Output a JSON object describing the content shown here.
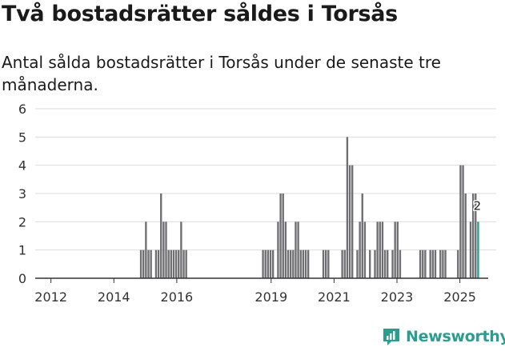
{
  "title": "Två bostadsrätter såldes i Torsås",
  "subtitle": "Antal sålda bostadsrätter i Torsås under de senaste tre månaderna.",
  "logo_text": "Newsworthy",
  "colors": {
    "bar": "#6f6f73",
    "highlight": "#2a9d8f",
    "grid": "#dddddd",
    "axis": "#333333"
  },
  "chart_data": {
    "type": "bar",
    "title": "Två bostadsrätter såldes i Torsås",
    "xlabel": "",
    "ylabel": "",
    "ylim": [
      0,
      6
    ],
    "yticks": [
      0,
      1,
      2,
      3,
      4,
      5,
      6
    ],
    "xticks": [
      2012,
      2014,
      2016,
      2019,
      2021,
      2023,
      2025
    ],
    "x_range": [
      2011.5,
      2025.9
    ],
    "bar_width_years": 0.06,
    "series": [
      {
        "name": "Sålda bostadsrätter",
        "points": [
          {
            "x": 2014.86,
            "y": 1
          },
          {
            "x": 2014.94,
            "y": 1
          },
          {
            "x": 2015.02,
            "y": 2
          },
          {
            "x": 2015.1,
            "y": 1
          },
          {
            "x": 2015.18,
            "y": 1
          },
          {
            "x": 2015.34,
            "y": 1
          },
          {
            "x": 2015.42,
            "y": 1
          },
          {
            "x": 2015.5,
            "y": 3
          },
          {
            "x": 2015.58,
            "y": 2
          },
          {
            "x": 2015.66,
            "y": 2
          },
          {
            "x": 2015.74,
            "y": 1
          },
          {
            "x": 2015.82,
            "y": 1
          },
          {
            "x": 2015.9,
            "y": 1
          },
          {
            "x": 2015.98,
            "y": 1
          },
          {
            "x": 2016.06,
            "y": 1
          },
          {
            "x": 2016.14,
            "y": 2
          },
          {
            "x": 2016.22,
            "y": 1
          },
          {
            "x": 2016.3,
            "y": 1
          },
          {
            "x": 2018.74,
            "y": 1
          },
          {
            "x": 2018.82,
            "y": 1
          },
          {
            "x": 2018.9,
            "y": 1
          },
          {
            "x": 2018.98,
            "y": 1
          },
          {
            "x": 2019.06,
            "y": 1
          },
          {
            "x": 2019.22,
            "y": 2
          },
          {
            "x": 2019.3,
            "y": 3
          },
          {
            "x": 2019.38,
            "y": 3
          },
          {
            "x": 2019.46,
            "y": 2
          },
          {
            "x": 2019.54,
            "y": 1
          },
          {
            "x": 2019.62,
            "y": 1
          },
          {
            "x": 2019.7,
            "y": 1
          },
          {
            "x": 2019.78,
            "y": 2
          },
          {
            "x": 2019.86,
            "y": 2
          },
          {
            "x": 2019.94,
            "y": 1
          },
          {
            "x": 2020.02,
            "y": 1
          },
          {
            "x": 2020.1,
            "y": 1
          },
          {
            "x": 2020.18,
            "y": 1
          },
          {
            "x": 2020.66,
            "y": 1
          },
          {
            "x": 2020.74,
            "y": 1
          },
          {
            "x": 2020.82,
            "y": 1
          },
          {
            "x": 2021.26,
            "y": 1
          },
          {
            "x": 2021.34,
            "y": 1
          },
          {
            "x": 2021.42,
            "y": 5
          },
          {
            "x": 2021.5,
            "y": 4
          },
          {
            "x": 2021.58,
            "y": 4
          },
          {
            "x": 2021.74,
            "y": 1
          },
          {
            "x": 2021.82,
            "y": 2
          },
          {
            "x": 2021.9,
            "y": 3
          },
          {
            "x": 2021.98,
            "y": 2
          },
          {
            "x": 2022.14,
            "y": 1
          },
          {
            "x": 2022.3,
            "y": 1
          },
          {
            "x": 2022.38,
            "y": 2
          },
          {
            "x": 2022.46,
            "y": 2
          },
          {
            "x": 2022.54,
            "y": 2
          },
          {
            "x": 2022.62,
            "y": 1
          },
          {
            "x": 2022.7,
            "y": 1
          },
          {
            "x": 2022.86,
            "y": 1
          },
          {
            "x": 2022.94,
            "y": 2
          },
          {
            "x": 2023.02,
            "y": 2
          },
          {
            "x": 2023.1,
            "y": 1
          },
          {
            "x": 2023.74,
            "y": 1
          },
          {
            "x": 2023.82,
            "y": 1
          },
          {
            "x": 2023.9,
            "y": 1
          },
          {
            "x": 2024.06,
            "y": 1
          },
          {
            "x": 2024.14,
            "y": 1
          },
          {
            "x": 2024.22,
            "y": 1
          },
          {
            "x": 2024.38,
            "y": 1
          },
          {
            "x": 2024.46,
            "y": 1
          },
          {
            "x": 2024.54,
            "y": 1
          },
          {
            "x": 2024.94,
            "y": 1
          },
          {
            "x": 2025.02,
            "y": 4
          },
          {
            "x": 2025.1,
            "y": 4
          },
          {
            "x": 2025.18,
            "y": 3
          },
          {
            "x": 2025.34,
            "y": 2
          },
          {
            "x": 2025.42,
            "y": 3
          },
          {
            "x": 2025.5,
            "y": 3
          },
          {
            "x": 2025.58,
            "y": 2,
            "highlight": true,
            "label": "2"
          }
        ]
      }
    ]
  }
}
